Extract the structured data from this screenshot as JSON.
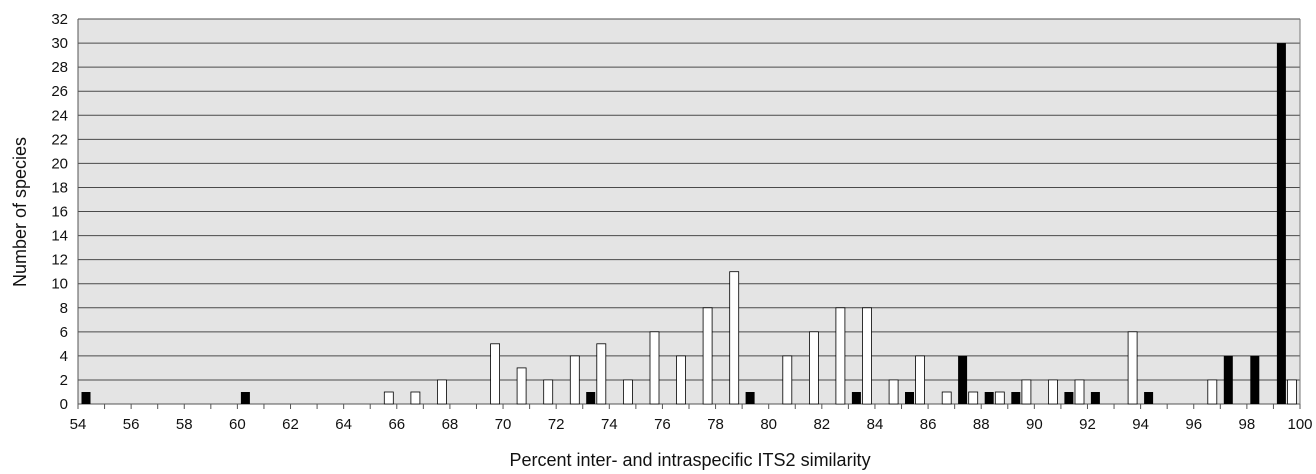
{
  "chart_data": {
    "type": "bar",
    "title": "",
    "xlabel": "Percent inter- and intraspecific ITS2 similarity",
    "ylabel": "Number of species",
    "xlim": [
      54,
      100
    ],
    "ylim": [
      0,
      32
    ],
    "x_ticks": [
      54,
      56,
      58,
      60,
      62,
      64,
      66,
      68,
      70,
      72,
      74,
      76,
      78,
      80,
      82,
      84,
      86,
      88,
      90,
      92,
      94,
      96,
      98,
      100
    ],
    "y_ticks": [
      0,
      2,
      4,
      6,
      8,
      10,
      12,
      14,
      16,
      18,
      20,
      22,
      24,
      26,
      28,
      30,
      32
    ],
    "grid": true,
    "legend": "none",
    "colors": {
      "plot_background": "#e4e4e4",
      "black_bars": "#000000",
      "white_bars": "#ffffff",
      "grid": "#4a4a4a"
    },
    "series": [
      {
        "color": "black",
        "points": [
          {
            "x": 54.3,
            "y": 1
          },
          {
            "x": 60.3,
            "y": 1
          },
          {
            "x": 73.3,
            "y": 1
          },
          {
            "x": 79.3,
            "y": 1
          },
          {
            "x": 83.3,
            "y": 1
          },
          {
            "x": 85.3,
            "y": 1
          },
          {
            "x": 87.3,
            "y": 4
          },
          {
            "x": 88.3,
            "y": 1
          },
          {
            "x": 89.3,
            "y": 1
          },
          {
            "x": 91.3,
            "y": 1
          },
          {
            "x": 92.3,
            "y": 1
          },
          {
            "x": 94.3,
            "y": 1
          },
          {
            "x": 97.3,
            "y": 4
          },
          {
            "x": 98.3,
            "y": 4
          },
          {
            "x": 99.3,
            "y": 30
          }
        ]
      },
      {
        "color": "white",
        "points": [
          {
            "x": 65.7,
            "y": 1
          },
          {
            "x": 66.7,
            "y": 1
          },
          {
            "x": 67.7,
            "y": 2
          },
          {
            "x": 69.7,
            "y": 5
          },
          {
            "x": 70.7,
            "y": 3
          },
          {
            "x": 71.7,
            "y": 2
          },
          {
            "x": 72.7,
            "y": 4
          },
          {
            "x": 73.7,
            "y": 5
          },
          {
            "x": 74.7,
            "y": 2
          },
          {
            "x": 75.7,
            "y": 6
          },
          {
            "x": 76.7,
            "y": 4
          },
          {
            "x": 77.7,
            "y": 8
          },
          {
            "x": 78.7,
            "y": 11
          },
          {
            "x": 80.7,
            "y": 4
          },
          {
            "x": 81.7,
            "y": 6
          },
          {
            "x": 82.7,
            "y": 8
          },
          {
            "x": 83.7,
            "y": 8
          },
          {
            "x": 84.7,
            "y": 2
          },
          {
            "x": 85.7,
            "y": 4
          },
          {
            "x": 86.7,
            "y": 1
          },
          {
            "x": 87.7,
            "y": 1
          },
          {
            "x": 88.7,
            "y": 1
          },
          {
            "x": 89.7,
            "y": 2
          },
          {
            "x": 90.7,
            "y": 2
          },
          {
            "x": 91.7,
            "y": 2
          },
          {
            "x": 93.7,
            "y": 6
          },
          {
            "x": 96.7,
            "y": 2
          },
          {
            "x": 99.7,
            "y": 2
          }
        ]
      }
    ]
  }
}
